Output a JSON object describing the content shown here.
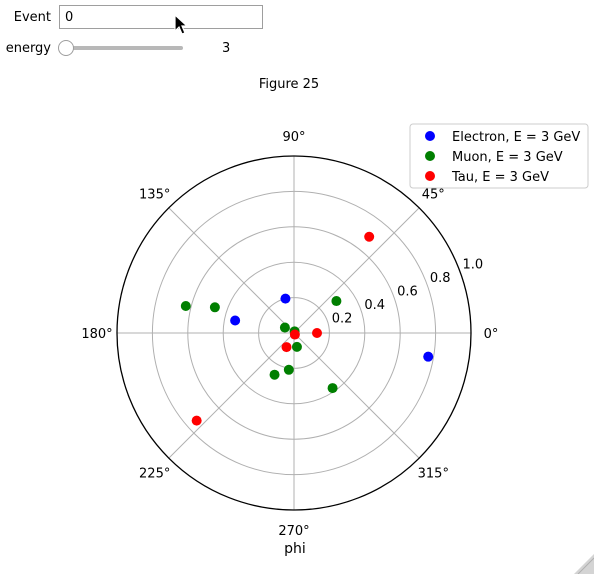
{
  "controls": {
    "event_label": "Event",
    "event_value": "0",
    "energy_label": "energy",
    "energy_value": "3",
    "energy_fraction": 0.0
  },
  "icons": {
    "cursor": "mouse-pointer-icon",
    "resize": "resize-handle-icon"
  },
  "chart_data": {
    "type": "scatter",
    "projection": "polar",
    "title": "Figure 25",
    "xlabel": "phi",
    "rlim": [
      0,
      1.0
    ],
    "r_ticks": [
      0.2,
      0.4,
      0.6,
      0.8,
      1.0
    ],
    "r_tick_labels": [
      "0.2",
      "0.4",
      "0.6",
      "0.8",
      "1.0"
    ],
    "theta_ticks": [
      0,
      45,
      90,
      135,
      180,
      225,
      270,
      315
    ],
    "theta_tick_labels": [
      "0°",
      "45°",
      "90°",
      "135°",
      "180°",
      "225°",
      "270°",
      "315°"
    ],
    "grid": true,
    "legend_position": "top-right",
    "series": [
      {
        "name": "Electron, E = 3 GeV",
        "color": "#0000ff",
        "points": [
          {
            "theta": 350,
            "r": 0.77
          },
          {
            "theta": 104,
            "r": 0.2
          },
          {
            "theta": 168,
            "r": 0.34
          }
        ]
      },
      {
        "name": "Muon, E = 3 GeV",
        "color": "#007f00",
        "points": [
          {
            "theta": 37,
            "r": 0.3
          },
          {
            "theta": 162,
            "r": 0.47
          },
          {
            "theta": 166,
            "r": 0.63
          },
          {
            "theta": 305,
            "r": 0.38
          },
          {
            "theta": 262,
            "r": 0.21
          },
          {
            "theta": 245,
            "r": 0.26
          },
          {
            "theta": 282,
            "r": 0.08
          },
          {
            "theta": 149,
            "r": 0.06
          },
          {
            "theta": 70,
            "r": 0.01
          }
        ]
      },
      {
        "name": "Tau, E = 3 GeV",
        "color": "#ff0000",
        "points": [
          {
            "theta": 52,
            "r": 0.69
          },
          {
            "theta": 0,
            "r": 0.13
          },
          {
            "theta": 242,
            "r": 0.09
          },
          {
            "theta": 222,
            "r": 0.74
          },
          {
            "theta": 300,
            "r": 0.01
          }
        ]
      }
    ]
  }
}
